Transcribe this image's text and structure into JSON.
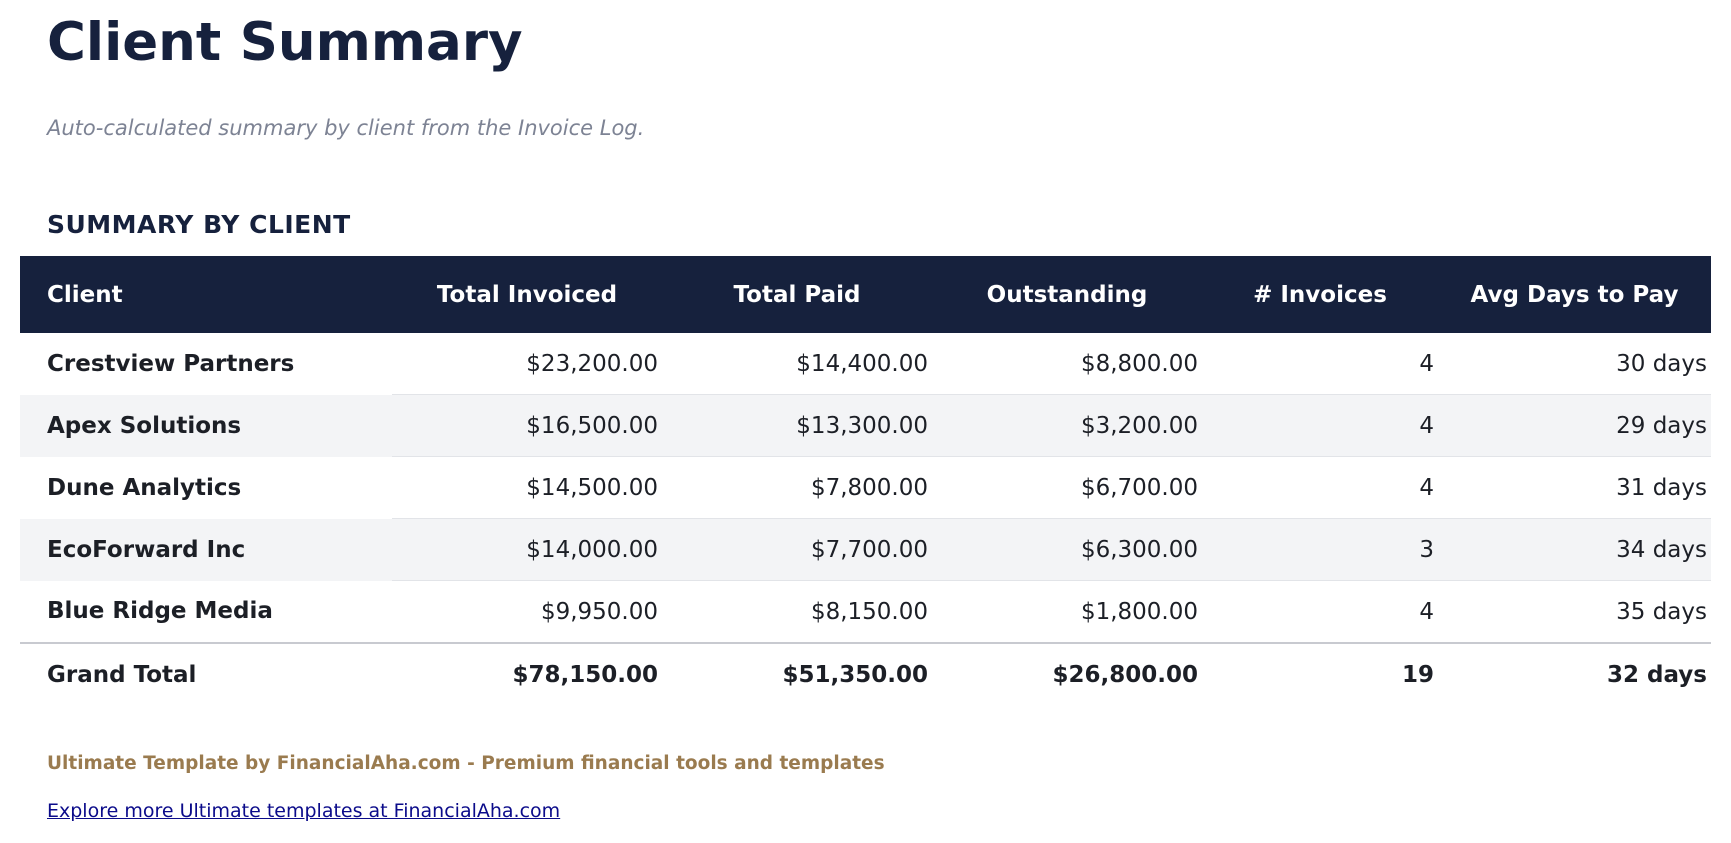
{
  "page": {
    "title": "Client Summary",
    "subtitle": "Auto-calculated summary by client from the Invoice Log.",
    "section_heading": "SUMMARY BY CLIENT"
  },
  "table": {
    "columns": [
      "Client",
      "Total Invoiced",
      "Total Paid",
      "Outstanding",
      "# Invoices",
      "Avg Days to Pay"
    ],
    "rows": [
      [
        "Crestview Partners",
        "$23,200.00",
        "$14,400.00",
        "$8,800.00",
        "4",
        "30 days"
      ],
      [
        "Apex Solutions",
        "$16,500.00",
        "$13,300.00",
        "$3,200.00",
        "4",
        "29 days"
      ],
      [
        "Dune Analytics",
        "$14,500.00",
        "$7,800.00",
        "$6,700.00",
        "4",
        "31 days"
      ],
      [
        "EcoForward Inc",
        "$14,000.00",
        "$7,700.00",
        "$6,300.00",
        "3",
        "34 days"
      ],
      [
        "Blue Ridge Media",
        "$9,950.00",
        "$8,150.00",
        "$1,800.00",
        "4",
        "35 days"
      ]
    ],
    "total": [
      "Grand Total",
      "$78,150.00",
      "$51,350.00",
      "$26,800.00",
      "19",
      "32 days"
    ]
  },
  "footer": {
    "brand_text": "Ultimate Template by FinancialAha.com - Premium financial tools and templates",
    "link_text": "Explore more Ultimate templates at FinancialAha.com"
  },
  "colors": {
    "header_bg": "#16213d",
    "stripe": "#f3f4f6",
    "brand": "#9a7b4f",
    "link": "#0b0b8a"
  }
}
